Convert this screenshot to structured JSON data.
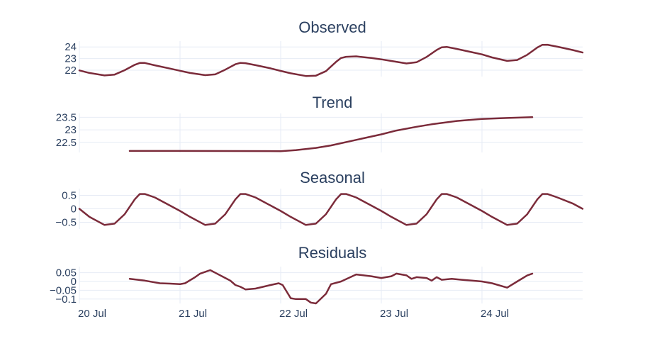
{
  "colors": {
    "line": "#7b2b3a",
    "grid": "#e6ebf5",
    "text": "#2a3f5f",
    "background": "#ffffff"
  },
  "chart_data": [
    {
      "type": "line",
      "title": "Observed",
      "xlim": [
        0,
        5
      ],
      "ylim": [
        21.45,
        24.5
      ],
      "yticks": [
        22,
        23,
        24
      ],
      "ytick_labels": [
        "22",
        "23",
        "24"
      ],
      "x": [
        0,
        0.1,
        0.25,
        0.35,
        0.45,
        0.55,
        0.6,
        0.65,
        0.75,
        0.9,
        1.0,
        1.1,
        1.25,
        1.35,
        1.45,
        1.55,
        1.6,
        1.65,
        1.75,
        1.9,
        2.0,
        2.1,
        2.25,
        2.35,
        2.45,
        2.55,
        2.6,
        2.65,
        2.75,
        2.9,
        3.0,
        3.1,
        3.25,
        3.35,
        3.45,
        3.55,
        3.6,
        3.65,
        3.75,
        3.9,
        4.0,
        4.1,
        4.25,
        4.35,
        4.45,
        4.55,
        4.6,
        4.65,
        4.75,
        4.9,
        5.0
      ],
      "values": [
        21.98,
        21.76,
        21.55,
        21.62,
        22.0,
        22.46,
        22.62,
        22.62,
        22.42,
        22.14,
        21.95,
        21.76,
        21.57,
        21.64,
        22.05,
        22.51,
        22.63,
        22.6,
        22.43,
        22.16,
        21.94,
        21.73,
        21.5,
        21.53,
        21.92,
        22.71,
        23.05,
        23.15,
        23.19,
        23.05,
        22.93,
        22.79,
        22.58,
        22.68,
        23.14,
        23.74,
        23.97,
        24.0,
        23.83,
        23.55,
        23.36,
        23.1,
        22.8,
        22.88,
        23.32,
        23.95,
        24.18,
        24.19,
        24.02,
        23.74,
        23.52
      ]
    },
    {
      "type": "line",
      "title": "Trend",
      "xlim": [
        0,
        5
      ],
      "ylim": [
        22.1,
        23.65
      ],
      "yticks": [
        22.5,
        23,
        23.5
      ],
      "ytick_labels": [
        "22.5",
        "23",
        "23.5"
      ],
      "x": [
        0.5,
        1.0,
        1.5,
        2.0,
        2.15,
        2.35,
        2.5,
        2.75,
        3.0,
        3.15,
        3.35,
        3.5,
        3.75,
        4.0,
        4.25,
        4.5
      ],
      "values": [
        22.16,
        22.16,
        22.155,
        22.15,
        22.19,
        22.28,
        22.38,
        22.6,
        22.82,
        22.97,
        23.12,
        23.22,
        23.35,
        23.43,
        23.47,
        23.5
      ]
    },
    {
      "type": "line",
      "title": "Seasonal",
      "xlim": [
        0,
        5
      ],
      "ylim": [
        -0.75,
        0.75
      ],
      "yticks": [
        -0.5,
        0,
        0.5
      ],
      "ytick_labels": [
        "−0.5",
        "0",
        "0.5"
      ],
      "x": [
        0,
        0.1,
        0.25,
        0.35,
        0.45,
        0.55,
        0.6,
        0.65,
        0.75,
        0.9,
        1.0,
        1.1,
        1.25,
        1.35,
        1.45,
        1.55,
        1.6,
        1.65,
        1.75,
        1.9,
        2.0,
        2.1,
        2.25,
        2.35,
        2.45,
        2.55,
        2.6,
        2.65,
        2.75,
        2.9,
        3.0,
        3.1,
        3.25,
        3.35,
        3.45,
        3.55,
        3.6,
        3.65,
        3.75,
        3.9,
        4.0,
        4.1,
        4.25,
        4.35,
        4.45,
        4.55,
        4.6,
        4.65,
        4.75,
        4.9,
        5.0
      ],
      "values": [
        0.0,
        -0.3,
        -0.6,
        -0.55,
        -0.2,
        0.35,
        0.55,
        0.55,
        0.42,
        0.12,
        -0.08,
        -0.3,
        -0.6,
        -0.55,
        -0.2,
        0.35,
        0.55,
        0.55,
        0.42,
        0.12,
        -0.08,
        -0.3,
        -0.6,
        -0.55,
        -0.2,
        0.35,
        0.55,
        0.55,
        0.42,
        0.12,
        -0.08,
        -0.3,
        -0.6,
        -0.55,
        -0.2,
        0.35,
        0.55,
        0.55,
        0.42,
        0.12,
        -0.08,
        -0.3,
        -0.6,
        -0.55,
        -0.2,
        0.35,
        0.55,
        0.55,
        0.42,
        0.2,
        0.0
      ]
    },
    {
      "type": "line",
      "title": "Residuals",
      "xlim": [
        0,
        5
      ],
      "ylim": [
        -0.125,
        0.085
      ],
      "yticks": [
        -0.1,
        -0.05,
        0,
        0.05
      ],
      "ytick_labels": [
        "−0.1",
        "−0.05",
        "0",
        "0.05"
      ],
      "xtick_labels": [
        "20 Jul",
        "21 Jul",
        "22 Jul",
        "23 Jul",
        "24 Jul"
      ],
      "xticks": [
        0,
        1,
        2,
        3,
        4
      ],
      "x": [
        0.5,
        0.65,
        0.8,
        0.9,
        1.0,
        1.05,
        1.15,
        1.2,
        1.3,
        1.35,
        1.45,
        1.5,
        1.55,
        1.6,
        1.65,
        1.75,
        1.9,
        1.98,
        2.02,
        2.1,
        2.15,
        2.25,
        2.3,
        2.35,
        2.45,
        2.5,
        2.6,
        2.75,
        2.9,
        3.0,
        3.1,
        3.15,
        3.25,
        3.3,
        3.35,
        3.45,
        3.5,
        3.55,
        3.6,
        3.7,
        3.8,
        3.9,
        4.0,
        4.1,
        4.25,
        4.35,
        4.45,
        4.5
      ],
      "values": [
        0.015,
        0.005,
        -0.01,
        -0.012,
        -0.015,
        -0.01,
        0.025,
        0.045,
        0.065,
        0.05,
        0.02,
        0.005,
        -0.02,
        -0.03,
        -0.045,
        -0.04,
        -0.02,
        -0.01,
        -0.02,
        -0.095,
        -0.1,
        -0.1,
        -0.12,
        -0.125,
        -0.07,
        -0.015,
        0.0,
        0.04,
        0.03,
        0.02,
        0.03,
        0.045,
        0.035,
        0.015,
        0.025,
        0.02,
        0.005,
        0.025,
        0.01,
        0.015,
        0.01,
        0.005,
        0.0,
        -0.01,
        -0.035,
        0.0,
        0.035,
        0.045
      ]
    }
  ]
}
